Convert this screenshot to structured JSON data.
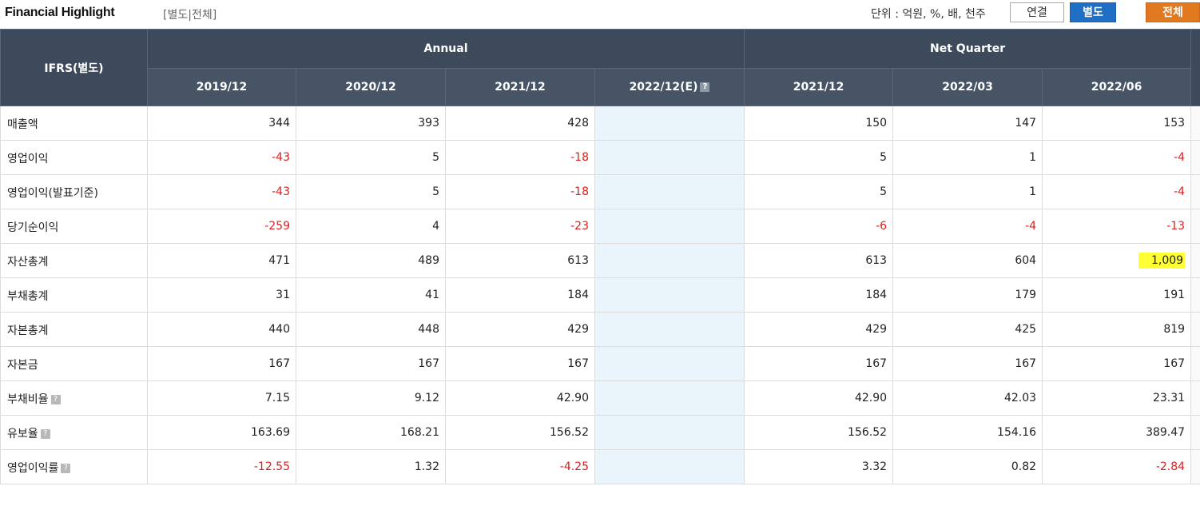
{
  "header": {
    "title": "Financial Highlight",
    "subtitle": "[별도|전체]",
    "unit": "단위 : 억원, %, 배, 천주",
    "buttons": {
      "consolidated": "연결",
      "separate": "별도",
      "all": "전체"
    }
  },
  "table": {
    "corner": "IFRS(별도)",
    "groups": {
      "annual": "Annual",
      "quarter": "Net Quarter"
    },
    "columns": [
      "2019/12",
      "2020/12",
      "2021/12",
      "2022/12(E)",
      "2021/12",
      "2022/03",
      "2022/06"
    ],
    "help_icon": "?",
    "rows": [
      {
        "label": "매출액",
        "help": false,
        "values": [
          "344",
          "393",
          "428",
          "",
          "150",
          "147",
          "153"
        ]
      },
      {
        "label": "영업이익",
        "help": false,
        "values": [
          "-43",
          "5",
          "-18",
          "",
          "5",
          "1",
          "-4"
        ]
      },
      {
        "label": "영업이익(발표기준)",
        "help": false,
        "values": [
          "-43",
          "5",
          "-18",
          "",
          "5",
          "1",
          "-4"
        ]
      },
      {
        "label": "당기순이익",
        "help": false,
        "values": [
          "-259",
          "4",
          "-23",
          "",
          "-6",
          "-4",
          "-13"
        ]
      },
      {
        "label": "자산총계",
        "help": false,
        "values": [
          "471",
          "489",
          "613",
          "",
          "613",
          "604",
          "1,009"
        ]
      },
      {
        "label": "부채총계",
        "help": false,
        "values": [
          "31",
          "41",
          "184",
          "",
          "184",
          "179",
          "191"
        ]
      },
      {
        "label": "자본총계",
        "help": false,
        "values": [
          "440",
          "448",
          "429",
          "",
          "429",
          "425",
          "819"
        ]
      },
      {
        "label": "자본금",
        "help": false,
        "values": [
          "167",
          "167",
          "167",
          "",
          "167",
          "167",
          "167"
        ]
      },
      {
        "label": "부채비율",
        "help": true,
        "values": [
          "7.15",
          "9.12",
          "42.90",
          "",
          "42.90",
          "42.03",
          "23.31"
        ]
      },
      {
        "label": "유보율",
        "help": true,
        "values": [
          "163.69",
          "168.21",
          "156.52",
          "",
          "156.52",
          "154.16",
          "389.47"
        ]
      },
      {
        "label": "영업이익률",
        "help": true,
        "values": [
          "-12.55",
          "1.32",
          "-4.25",
          "",
          "3.32",
          "0.82",
          "-2.84"
        ]
      }
    ]
  },
  "colors": {
    "header_bg": "#3d4a5b",
    "negative": "#e01e1e",
    "highlight": "#ffff33",
    "estimate_bg": "#e9f5fb"
  }
}
